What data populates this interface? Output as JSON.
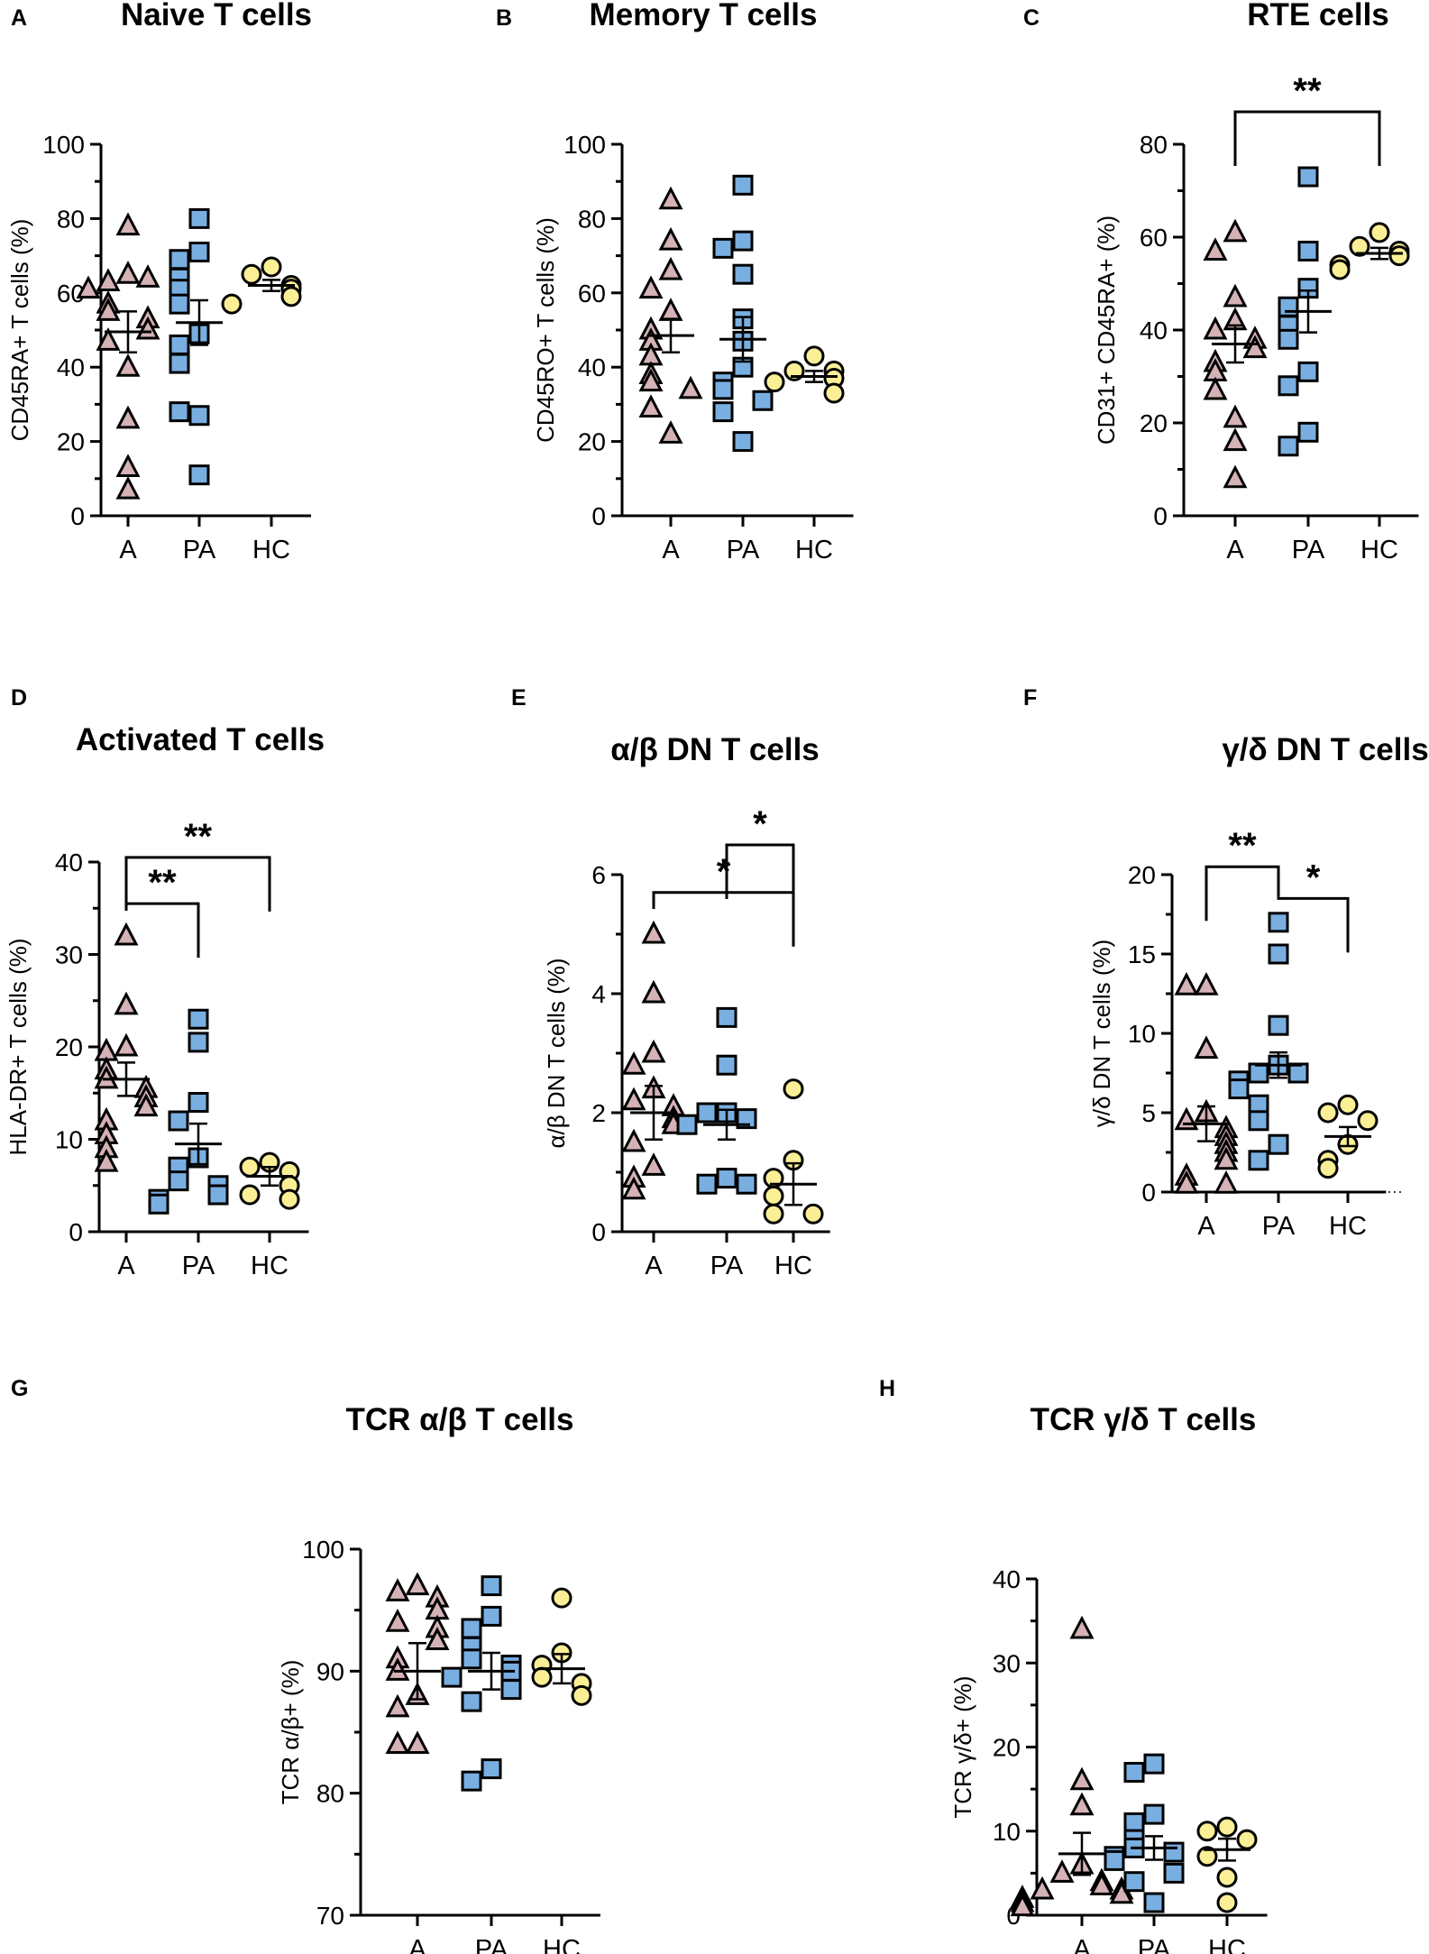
{
  "colors": {
    "A": "#d4b2b6",
    "PA": "#79aee0",
    "HC": "#fbef96",
    "axis": "#000000"
  },
  "marker_shapes": {
    "A": "triangle",
    "PA": "square",
    "HC": "circle"
  },
  "chart_data": [
    {
      "type": "scatter",
      "panel": "A",
      "title": "Naive T cells",
      "ylabel": "CD45RA+ T cells (%)",
      "ylim": [
        0,
        100
      ],
      "yticks": [
        0,
        20,
        40,
        60,
        80,
        100
      ],
      "categories": [
        "A",
        "PA",
        "HC"
      ],
      "groups": [
        {
          "name": "A",
          "values": [
            78,
            65,
            63,
            64,
            61,
            57,
            55,
            53,
            50,
            47,
            40,
            26,
            13,
            7
          ],
          "mean": 49.5,
          "sem": 5.5
        },
        {
          "name": "PA",
          "values": [
            80,
            71,
            69,
            64,
            61,
            57,
            49,
            46,
            41,
            27,
            28,
            11
          ],
          "mean": 52,
          "sem": 6
        },
        {
          "name": "HC",
          "values": [
            67,
            65,
            62,
            61,
            59,
            57
          ],
          "mean": 62,
          "sem": 1.5
        }
      ],
      "significance": []
    },
    {
      "type": "scatter",
      "panel": "B",
      "title": "Memory T cells",
      "ylabel": "CD45RO+ T cells (%)",
      "ylim": [
        0,
        100
      ],
      "yticks": [
        0,
        20,
        40,
        60,
        80,
        100
      ],
      "categories": [
        "A",
        "PA",
        "HC"
      ],
      "groups": [
        {
          "name": "A",
          "values": [
            85,
            74,
            66,
            61,
            55,
            50,
            47,
            43,
            38,
            36,
            34,
            29,
            22
          ],
          "mean": 48.5,
          "sem": 4.5
        },
        {
          "name": "PA",
          "values": [
            89,
            74,
            72,
            65,
            53,
            47,
            40,
            36,
            34,
            31,
            28,
            20
          ],
          "mean": 47.5,
          "sem": 6
        },
        {
          "name": "HC",
          "values": [
            43,
            39,
            39,
            37,
            36,
            33
          ],
          "mean": 37.5,
          "sem": 1.5
        }
      ],
      "significance": []
    },
    {
      "type": "scatter",
      "panel": "C",
      "title": "RTE cells",
      "ylabel": "CD31+ CD45RA+ (%)",
      "ylim": [
        0,
        80
      ],
      "yticks": [
        0,
        20,
        40,
        60,
        80
      ],
      "categories": [
        "A",
        "PA",
        "HC"
      ],
      "groups": [
        {
          "name": "A",
          "values": [
            61,
            57,
            47,
            42,
            40,
            38,
            36,
            33,
            31,
            27,
            21,
            16,
            8
          ],
          "mean": 37,
          "sem": 4
        },
        {
          "name": "PA",
          "values": [
            73,
            57,
            49,
            45,
            41,
            38,
            31,
            28,
            18,
            15
          ],
          "mean": 44,
          "sem": 4.5
        },
        {
          "name": "HC",
          "values": [
            61,
            58,
            57,
            56,
            54,
            53
          ],
          "mean": 56.5,
          "sem": 1.2
        }
      ],
      "significance": [
        {
          "from": "A",
          "to": "HC",
          "label": "**",
          "level": 87
        }
      ]
    },
    {
      "type": "scatter",
      "panel": "D",
      "title": "Activated T cells",
      "ylabel": "HLA-DR+ T cells (%)",
      "ylim": [
        0,
        40
      ],
      "yticks": [
        0,
        10,
        20,
        30,
        40
      ],
      "categories": [
        "A",
        "PA",
        "HC"
      ],
      "groups": [
        {
          "name": "A",
          "values": [
            32,
            24.5,
            20,
            19.5,
            17.5,
            16.5,
            15.5,
            14.5,
            13.5,
            12,
            10.5,
            9,
            7.5
          ],
          "mean": 16.5,
          "sem": 1.8
        },
        {
          "name": "PA",
          "values": [
            23,
            20.5,
            14,
            12,
            8,
            7,
            5.5,
            5,
            4,
            3.5,
            3
          ],
          "mean": 9.5,
          "sem": 2.2
        },
        {
          "name": "HC",
          "values": [
            7.5,
            7,
            6.5,
            5,
            4,
            3.5
          ],
          "mean": 6,
          "sem": 1
        }
      ],
      "significance": [
        {
          "from": "A",
          "to": "PA",
          "label": "**",
          "level": 35.5
        },
        {
          "from": "A",
          "to": "HC",
          "label": "**",
          "level": 40.5
        }
      ]
    },
    {
      "type": "scatter",
      "panel": "E",
      "title": "α/β DN T cells",
      "ylabel": "α/β DN T cells (%)",
      "ylim": [
        0,
        6
      ],
      "yticks": [
        0,
        2,
        4,
        6
      ],
      "categories": [
        "A",
        "PA",
        "HC"
      ],
      "groups": [
        {
          "name": "A",
          "values": [
            5,
            4,
            3,
            2.8,
            2.4,
            2.2,
            2.1,
            1.9,
            1.8,
            1.5,
            1.1,
            0.9,
            0.7
          ],
          "mean": 2,
          "sem": 0.45
        },
        {
          "name": "PA",
          "values": [
            3.6,
            2.8,
            2,
            2,
            1.9,
            1.8,
            0.9,
            0.8,
            0.8
          ],
          "mean": 1.8,
          "sem": 0.25
        },
        {
          "name": "HC",
          "values": [
            2.4,
            1.2,
            0.9,
            0.6,
            0.3,
            0.3
          ],
          "mean": 0.8,
          "sem": 0.35
        }
      ],
      "significance": [
        {
          "from": "A",
          "to": "HC",
          "label": "*",
          "level": 5.7
        },
        {
          "from": "PA",
          "to": "HC",
          "label": "*",
          "level": 6.5
        }
      ]
    },
    {
      "type": "scatter",
      "panel": "F",
      "title": "γ/δ DN T cells",
      "ylabel": "γ/δ DN T cells (%)",
      "ylim": [
        0,
        20
      ],
      "yticks": [
        0,
        5,
        10,
        15,
        20
      ],
      "reference_line": 0,
      "categories": [
        "A",
        "PA",
        "HC"
      ],
      "groups": [
        {
          "name": "A",
          "values": [
            13,
            13,
            9,
            5,
            4.5,
            4,
            3.5,
            3,
            2.5,
            2,
            1,
            0.5,
            0.5
          ],
          "mean": 4.3,
          "sem": 1.1
        },
        {
          "name": "PA",
          "values": [
            17,
            15,
            10.5,
            8,
            7.5,
            7.5,
            7,
            6.5,
            5.5,
            4.5,
            3,
            2
          ],
          "mean": 8,
          "sem": 0.8
        },
        {
          "name": "HC",
          "values": [
            5.5,
            5,
            4.5,
            3,
            2,
            1.5
          ],
          "mean": 3.5,
          "sem": 0.6
        }
      ],
      "significance": [
        {
          "from": "A",
          "to": "PA",
          "label": "**",
          "level": 20.5
        },
        {
          "from": "PA",
          "to": "HC",
          "label": "*",
          "level": 18.5
        }
      ]
    },
    {
      "type": "scatter",
      "panel": "G",
      "title": "TCR α/β T cells",
      "ylabel": "TCR α/β+ (%)",
      "ylim": [
        70,
        100
      ],
      "yticks": [
        70,
        80,
        90,
        100
      ],
      "categories": [
        "A",
        "PA",
        "HC"
      ],
      "groups": [
        {
          "name": "A",
          "values": [
            97,
            96.5,
            96,
            95,
            94,
            93.5,
            92.5,
            91,
            90,
            88,
            87,
            84,
            84
          ],
          "mean": 90,
          "sem": 2.3
        },
        {
          "name": "PA",
          "values": [
            97,
            94.5,
            93.5,
            92,
            91,
            90.5,
            90,
            89.5,
            88.5,
            87.5,
            82,
            81
          ],
          "mean": 90,
          "sem": 1.5
        },
        {
          "name": "HC",
          "values": [
            96,
            91.5,
            90.5,
            89.5,
            89,
            88
          ],
          "mean": 90.2,
          "sem": 1.2
        }
      ],
      "significance": []
    },
    {
      "type": "scatter",
      "panel": "H",
      "title": "TCR γ/δ T cells",
      "ylabel": "TCR γ/δ+ (%)",
      "ylim": [
        0,
        40
      ],
      "yticks": [
        0,
        10,
        20,
        30,
        40
      ],
      "categories": [
        "A",
        "PA",
        "HC"
      ],
      "groups": [
        {
          "name": "A",
          "values": [
            34,
            16,
            13,
            6,
            5,
            4,
            3.5,
            3,
            3,
            2.5,
            2,
            1.5,
            1
          ],
          "mean": 7.3,
          "sem": 2.5
        },
        {
          "name": "PA",
          "values": [
            18,
            17,
            12,
            11,
            9,
            8,
            7.5,
            7,
            6.5,
            5,
            4,
            1.5
          ],
          "mean": 8,
          "sem": 1.4
        },
        {
          "name": "HC",
          "values": [
            10.5,
            10,
            9,
            7,
            4.5,
            1.5
          ],
          "mean": 7.8,
          "sem": 1.3
        }
      ],
      "significance": []
    }
  ]
}
